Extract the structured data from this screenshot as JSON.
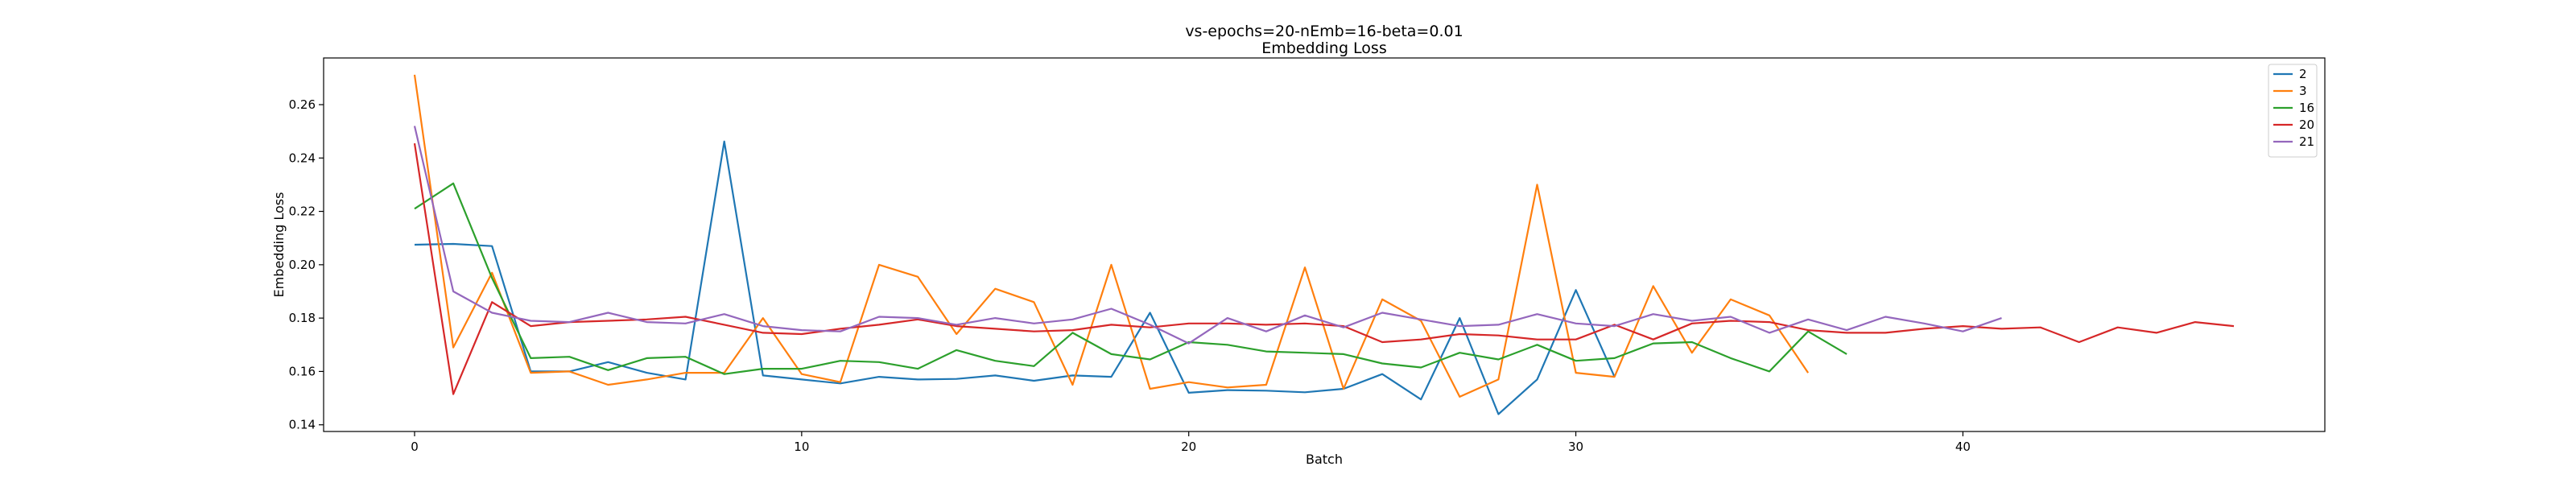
{
  "chart_data": {
    "type": "line",
    "title": "vs-epochs=20-nEmb=16-beta=0.01",
    "subtitle": "Embedding Loss",
    "xlabel": "Batch",
    "ylabel": "Embedding Loss",
    "xlim": [
      -2.35,
      49.35
    ],
    "ylim": [
      0.1375,
      0.2775
    ],
    "xticks": [
      0,
      10,
      20,
      30,
      40
    ],
    "yticks": [
      0.14,
      0.16,
      0.18,
      0.2,
      0.22,
      0.24,
      0.26
    ],
    "grid": false,
    "legend_position": "top-right",
    "series": [
      {
        "name": "2",
        "color": "#1f77b4",
        "values": [
          0.2075,
          0.2078,
          0.207,
          0.16,
          0.16,
          0.1635,
          0.1595,
          0.157,
          0.2462,
          0.1585,
          0.157,
          0.1555,
          0.158,
          0.157,
          0.1572,
          0.1585,
          0.1565,
          0.1585,
          0.158,
          0.182,
          0.152,
          0.153,
          0.1528,
          0.1522,
          0.1535,
          0.159,
          0.1495,
          0.18,
          0.144,
          0.157,
          0.1905,
          0.158
        ]
      },
      {
        "name": "3",
        "color": "#ff7f0e",
        "values": [
          0.2712,
          0.169,
          0.197,
          0.1595,
          0.16,
          0.155,
          0.157,
          0.1595,
          0.1595,
          0.18,
          0.159,
          0.156,
          0.2,
          0.1955,
          0.174,
          0.191,
          0.186,
          0.155,
          0.2,
          0.1535,
          0.156,
          0.154,
          0.155,
          0.199,
          0.1535,
          0.187,
          0.179,
          0.1505,
          0.157,
          0.23,
          0.1595,
          0.158,
          0.192,
          0.167,
          0.187,
          0.181,
          0.1595
        ]
      },
      {
        "name": "16",
        "color": "#2ca02c",
        "values": [
          0.221,
          0.2305,
          0.195,
          0.165,
          0.1655,
          0.1605,
          0.165,
          0.1655,
          0.159,
          0.161,
          0.161,
          0.164,
          0.1635,
          0.161,
          0.168,
          0.164,
          0.162,
          0.1745,
          0.1665,
          0.1645,
          0.171,
          0.17,
          0.1675,
          0.167,
          0.1665,
          0.163,
          0.1615,
          0.167,
          0.1645,
          0.17,
          0.164,
          0.165,
          0.1705,
          0.171,
          0.165,
          0.16,
          0.175,
          0.1665
        ]
      },
      {
        "name": "20",
        "color": "#d62728",
        "values": [
          0.2455,
          0.1515,
          0.186,
          0.177,
          0.1785,
          0.179,
          0.1795,
          0.1805,
          0.1775,
          0.1745,
          0.174,
          0.176,
          0.1775,
          0.1795,
          0.177,
          0.176,
          0.175,
          0.1755,
          0.1775,
          0.1765,
          0.178,
          0.178,
          0.1775,
          0.178,
          0.177,
          0.171,
          0.172,
          0.174,
          0.1735,
          0.172,
          0.172,
          0.1775,
          0.172,
          0.178,
          0.179,
          0.1785,
          0.1755,
          0.1745,
          0.1745,
          0.176,
          0.177,
          0.176,
          0.1765,
          0.171,
          0.1765,
          0.1745,
          0.1785,
          0.177
        ]
      },
      {
        "name": "21",
        "color": "#9467bd",
        "values": [
          0.252,
          0.19,
          0.182,
          0.179,
          0.1785,
          0.182,
          0.1785,
          0.178,
          0.1815,
          0.177,
          0.1755,
          0.175,
          0.1805,
          0.18,
          0.1775,
          0.18,
          0.178,
          0.1795,
          0.1835,
          0.1775,
          0.1705,
          0.18,
          0.175,
          0.181,
          0.1765,
          0.182,
          0.1795,
          0.177,
          0.1775,
          0.1815,
          0.178,
          0.177,
          0.1815,
          0.179,
          0.1805,
          0.1745,
          0.1795,
          0.1755,
          0.1805,
          0.178,
          0.175,
          0.18
        ]
      }
    ]
  }
}
